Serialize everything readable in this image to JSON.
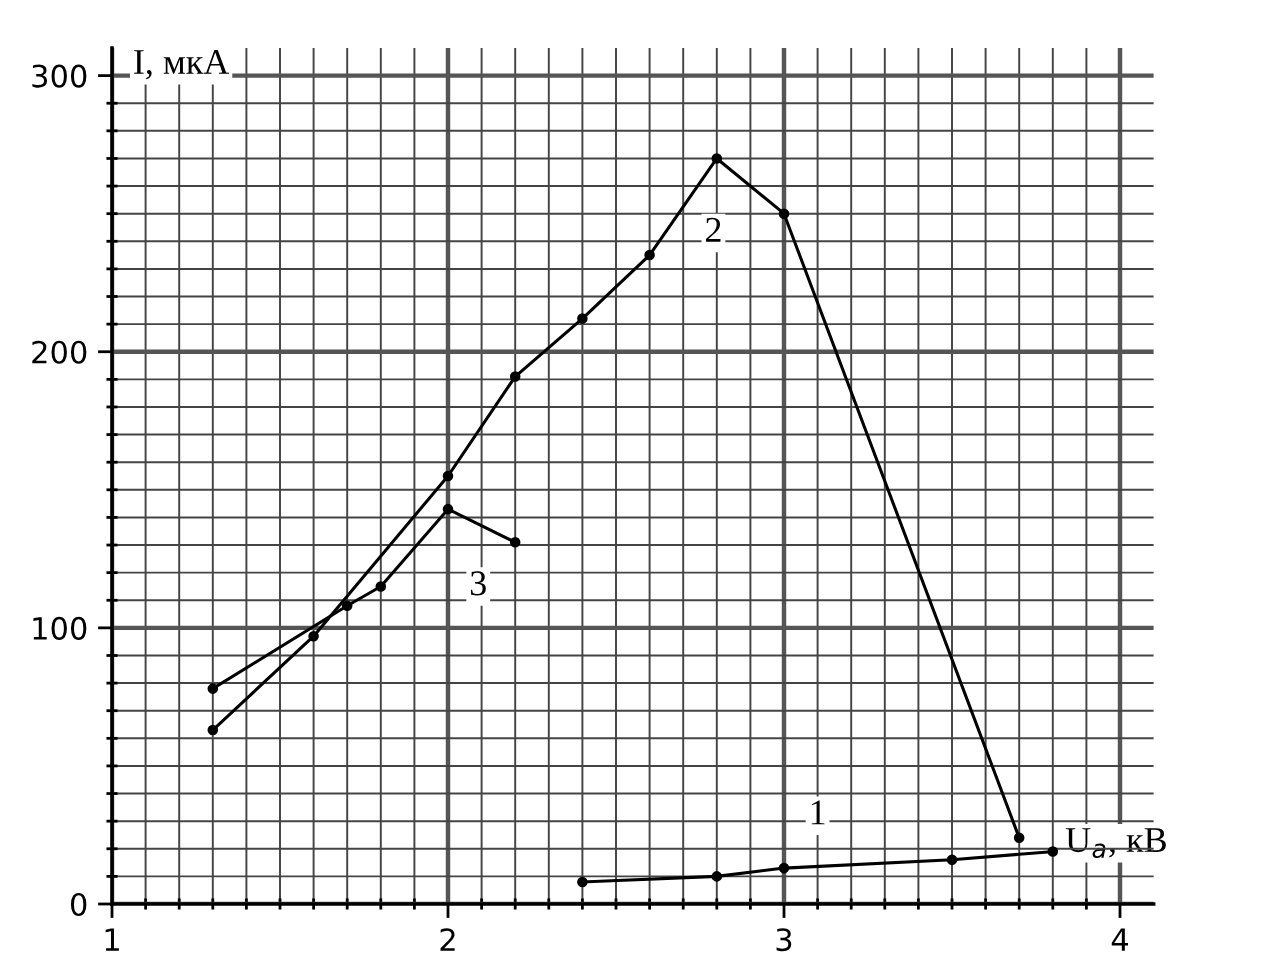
{
  "chart_data": {
    "type": "line",
    "xlabel": "U$_{a}$, кВ",
    "ylabel": "I, мкА",
    "xlim": [
      1,
      4.1
    ],
    "ylim": [
      0,
      310
    ],
    "xticks": [
      1,
      {
        "value": 1.1,
        "label": null
      },
      {
        "value": 1.2,
        "label": null
      },
      {
        "value": 1.3,
        "label": null
      },
      {
        "value": 1.4,
        "label": null
      },
      {
        "value": 1.5,
        "label": null
      },
      {
        "value": 1.6,
        "label": null
      },
      {
        "value": 1.7,
        "label": null
      },
      {
        "value": 1.8,
        "label": null
      },
      {
        "value": 1.9,
        "label": null
      },
      2,
      {
        "value": 2.1,
        "label": null
      },
      {
        "value": 2.2,
        "label": null
      },
      {
        "value": 2.3,
        "label": null
      },
      {
        "value": 2.4,
        "label": null
      },
      {
        "value": 2.5,
        "label": null
      },
      {
        "value": 2.6,
        "label": null
      },
      {
        "value": 2.7,
        "label": null
      },
      {
        "value": 2.8,
        "label": null
      },
      {
        "value": 2.9,
        "label": null
      },
      3,
      {
        "value": 3.1,
        "label": null
      },
      {
        "value": 3.2,
        "label": null
      },
      {
        "value": 3.3,
        "label": null
      },
      {
        "value": 3.4,
        "label": null
      },
      {
        "value": 3.5,
        "label": null
      },
      {
        "value": 3.6,
        "label": null
      },
      {
        "value": 3.7,
        "label": null
      },
      {
        "value": 3.8,
        "label": null
      },
      {
        "value": 3.9,
        "label": null
      },
      4
    ],
    "yticks": [
      0,
      {
        "value": 10,
        "label": null
      },
      {
        "value": 20,
        "label": null
      },
      {
        "value": 30,
        "label": null
      },
      {
        "value": 40,
        "label": null
      },
      {
        "value": 50,
        "label": null
      },
      {
        "value": 60,
        "label": null
      },
      {
        "value": 70,
        "label": null
      },
      {
        "value": 80,
        "label": null
      },
      {
        "value": 90,
        "label": null
      },
      100,
      {
        "value": 110,
        "label": null
      },
      {
        "value": 120,
        "label": null
      },
      {
        "value": 130,
        "label": null
      },
      {
        "value": 140,
        "label": null
      },
      {
        "value": 150,
        "label": null
      },
      {
        "value": 160,
        "label": null
      },
      {
        "value": 170,
        "label": null
      },
      {
        "value": 180,
        "label": null
      },
      {
        "value": 190,
        "label": null
      },
      200,
      {
        "value": 210,
        "label": null
      },
      {
        "value": 220,
        "label": null
      },
      {
        "value": 230,
        "label": null
      },
      {
        "value": 240,
        "label": null
      },
      {
        "value": 250,
        "label": null
      },
      {
        "value": 260,
        "label": null
      },
      {
        "value": 270,
        "label": null
      },
      {
        "value": 280,
        "label": null
      },
      {
        "value": 290,
        "label": null
      },
      300
    ],
    "grid": true,
    "marker": "circle",
    "line_style": "solid",
    "series": [
      {
        "color": "#000000",
        "x": [
          2.4,
          2.8,
          3.0,
          3.5,
          3.8
        ],
        "values": [
          8,
          10,
          13,
          16,
          19
        ]
      },
      {
        "color": "#000000",
        "x": [
          1.3,
          1.6,
          2.0,
          2.2,
          2.4,
          2.6,
          2.8,
          3.0,
          3.7
        ],
        "values": [
          63,
          97,
          155,
          191,
          212,
          235,
          270,
          250,
          24
        ]
      },
      {
        "color": "#000000",
        "x": [
          1.3,
          1.7,
          1.8,
          2.0,
          2.2
        ],
        "values": [
          78,
          108,
          115,
          143,
          131
        ]
      }
    ],
    "annotations": [
      {
        "text": "1",
        "x": 3.1,
        "y": 32
      },
      {
        "text": "2",
        "x": 2.79,
        "y": 243
      },
      {
        "text": "3",
        "x": 2.09,
        "y": 115
      }
    ]
  }
}
